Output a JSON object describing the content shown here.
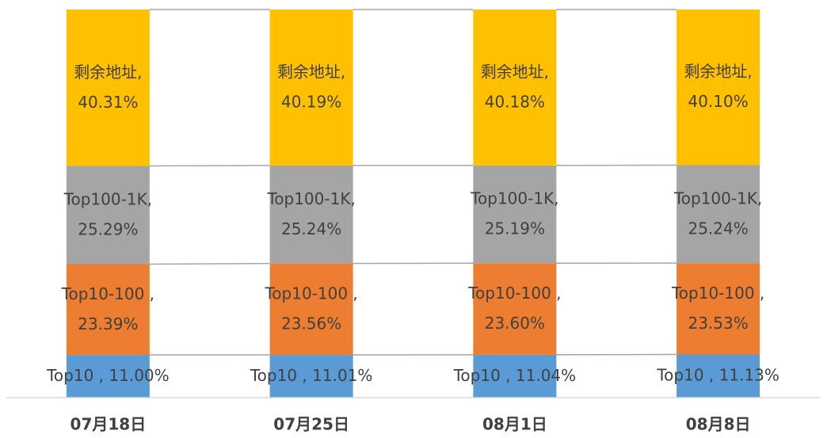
{
  "chart_data": {
    "type": "stacked_bar_100",
    "categories": [
      "07月18日",
      "07月25日",
      "08月1日",
      "08月8日"
    ],
    "series": [
      {
        "name": "Top10",
        "color": "#5b9bd5",
        "values": [
          11.0,
          11.01,
          11.04,
          11.13
        ],
        "value_labels": [
          [
            "Top10 , 11.00%"
          ],
          [
            "Top10 , 11.01%"
          ],
          [
            "Top10 , 11.04%"
          ],
          [
            "Top10 , 11.13%"
          ]
        ]
      },
      {
        "name": "Top10-100",
        "color": "#ed7d31",
        "values": [
          23.39,
          23.56,
          23.6,
          23.53
        ],
        "value_labels": [
          [
            "Top10-100 ,",
            "23.39%"
          ],
          [
            "Top10-100 ,",
            "23.56%"
          ],
          [
            "Top10-100 ,",
            "23.60%"
          ],
          [
            "Top10-100 ,",
            "23.53%"
          ]
        ]
      },
      {
        "name": "Top100-1K",
        "color": "#a5a5a5",
        "values": [
          25.29,
          25.24,
          25.19,
          25.24
        ],
        "value_labels": [
          [
            "Top100-1K,",
            "25.29%"
          ],
          [
            "Top100-1K,",
            "25.24%"
          ],
          [
            "Top100-1K,",
            "25.19%"
          ],
          [
            "Top100-1K,",
            "25.24%"
          ]
        ]
      },
      {
        "name": "剩余地址",
        "color": "#ffc000",
        "values": [
          40.31,
          40.19,
          40.18,
          40.1
        ],
        "value_labels": [
          [
            "剩余地址,",
            "40.31%"
          ],
          [
            "剩余地址,",
            "40.19%"
          ],
          [
            "剩余地址,",
            "40.18%"
          ],
          [
            "剩余地址,",
            "40.10%"
          ]
        ]
      }
    ]
  }
}
